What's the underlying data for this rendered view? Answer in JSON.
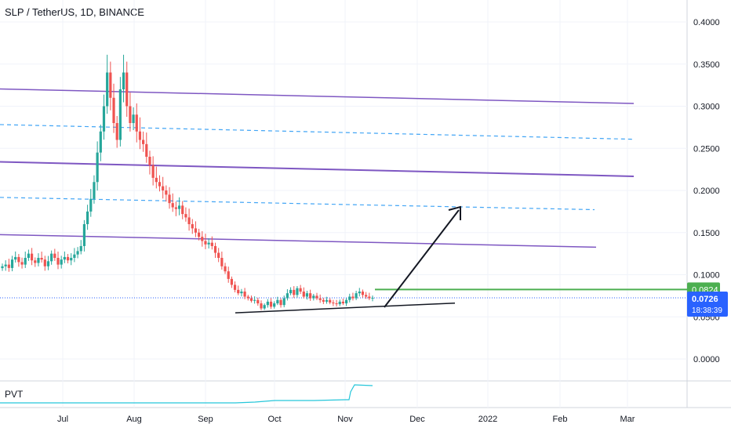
{
  "header": {
    "title": "SLP / TetherUS, 1D, BINANCE"
  },
  "indicator": {
    "name": "PVT"
  },
  "colors": {
    "up": "#26a69a",
    "down": "#ef5350",
    "purple": "#7e57c2",
    "dashed": "#42a5f5",
    "green": "#4caf50",
    "trend": "#131722",
    "pvt": "#26c6da",
    "axis_text": "#131722",
    "grid": "#f0f3fa",
    "current": "#2962ff"
  },
  "price_axis": {
    "ticks": [
      "0.4000",
      "0.3500",
      "0.3000",
      "0.2500",
      "0.2000",
      "0.1500",
      "0.1000",
      "0.0500",
      "0.0000"
    ],
    "labels": {
      "green_level": "0.0824",
      "current_price": "0.0726",
      "countdown": "18:38:39"
    }
  },
  "time_axis": {
    "ticks": [
      "Jul",
      "Aug",
      "Sep",
      "Oct",
      "Nov",
      "Dec",
      "2022",
      "Feb",
      "Mar"
    ]
  },
  "chart_data": {
    "type": "candlestick",
    "title": "SLP / TetherUS, 1D, BINANCE",
    "ylim": [
      -0.02,
      0.42
    ],
    "closes": [
      0.11,
      0.112,
      0.108,
      0.118,
      0.121,
      0.115,
      0.112,
      0.12,
      0.125,
      0.117,
      0.114,
      0.12,
      0.118,
      0.11,
      0.116,
      0.125,
      0.12,
      0.112,
      0.118,
      0.121,
      0.117,
      0.12,
      0.124,
      0.128,
      0.134,
      0.16,
      0.175,
      0.19,
      0.21,
      0.245,
      0.27,
      0.3,
      0.34,
      0.31,
      0.28,
      0.26,
      0.32,
      0.34,
      0.3,
      0.28,
      0.29,
      0.27,
      0.26,
      0.255,
      0.24,
      0.23,
      0.215,
      0.21,
      0.205,
      0.2,
      0.195,
      0.185,
      0.18,
      0.178,
      0.182,
      0.172,
      0.168,
      0.16,
      0.155,
      0.15,
      0.145,
      0.14,
      0.136,
      0.138,
      0.134,
      0.126,
      0.12,
      0.11,
      0.104,
      0.095,
      0.088,
      0.082,
      0.078,
      0.08,
      0.074,
      0.072,
      0.069,
      0.07,
      0.066,
      0.06,
      0.064,
      0.068,
      0.062,
      0.066,
      0.07,
      0.064,
      0.072,
      0.078,
      0.082,
      0.076,
      0.084,
      0.08,
      0.074,
      0.078,
      0.072,
      0.075,
      0.072,
      0.07,
      0.068,
      0.07,
      0.067,
      0.066,
      0.065,
      0.068,
      0.066,
      0.07,
      0.074,
      0.072,
      0.078,
      0.08,
      0.076,
      0.074,
      0.072,
      0.0726
    ],
    "overlays": {
      "resistance_lines": [
        {
          "y_start": 0.3205,
          "y_end": 0.3032
        },
        {
          "y_start": 0.2339,
          "y_end": 0.2168
        },
        {
          "y_start": 0.1476,
          "y_end": 0.1327
        }
      ],
      "dashed_lines": [
        {
          "y_start": 0.2782,
          "y_end": 0.2608
        },
        {
          "y_start": 0.1918,
          "y_end": 0.1772
        }
      ],
      "horizontal_level": 0.0824,
      "support_line": {
        "y_start": 0.0548,
        "y_end": 0.0663
      },
      "current_price": 0.0726
    }
  }
}
